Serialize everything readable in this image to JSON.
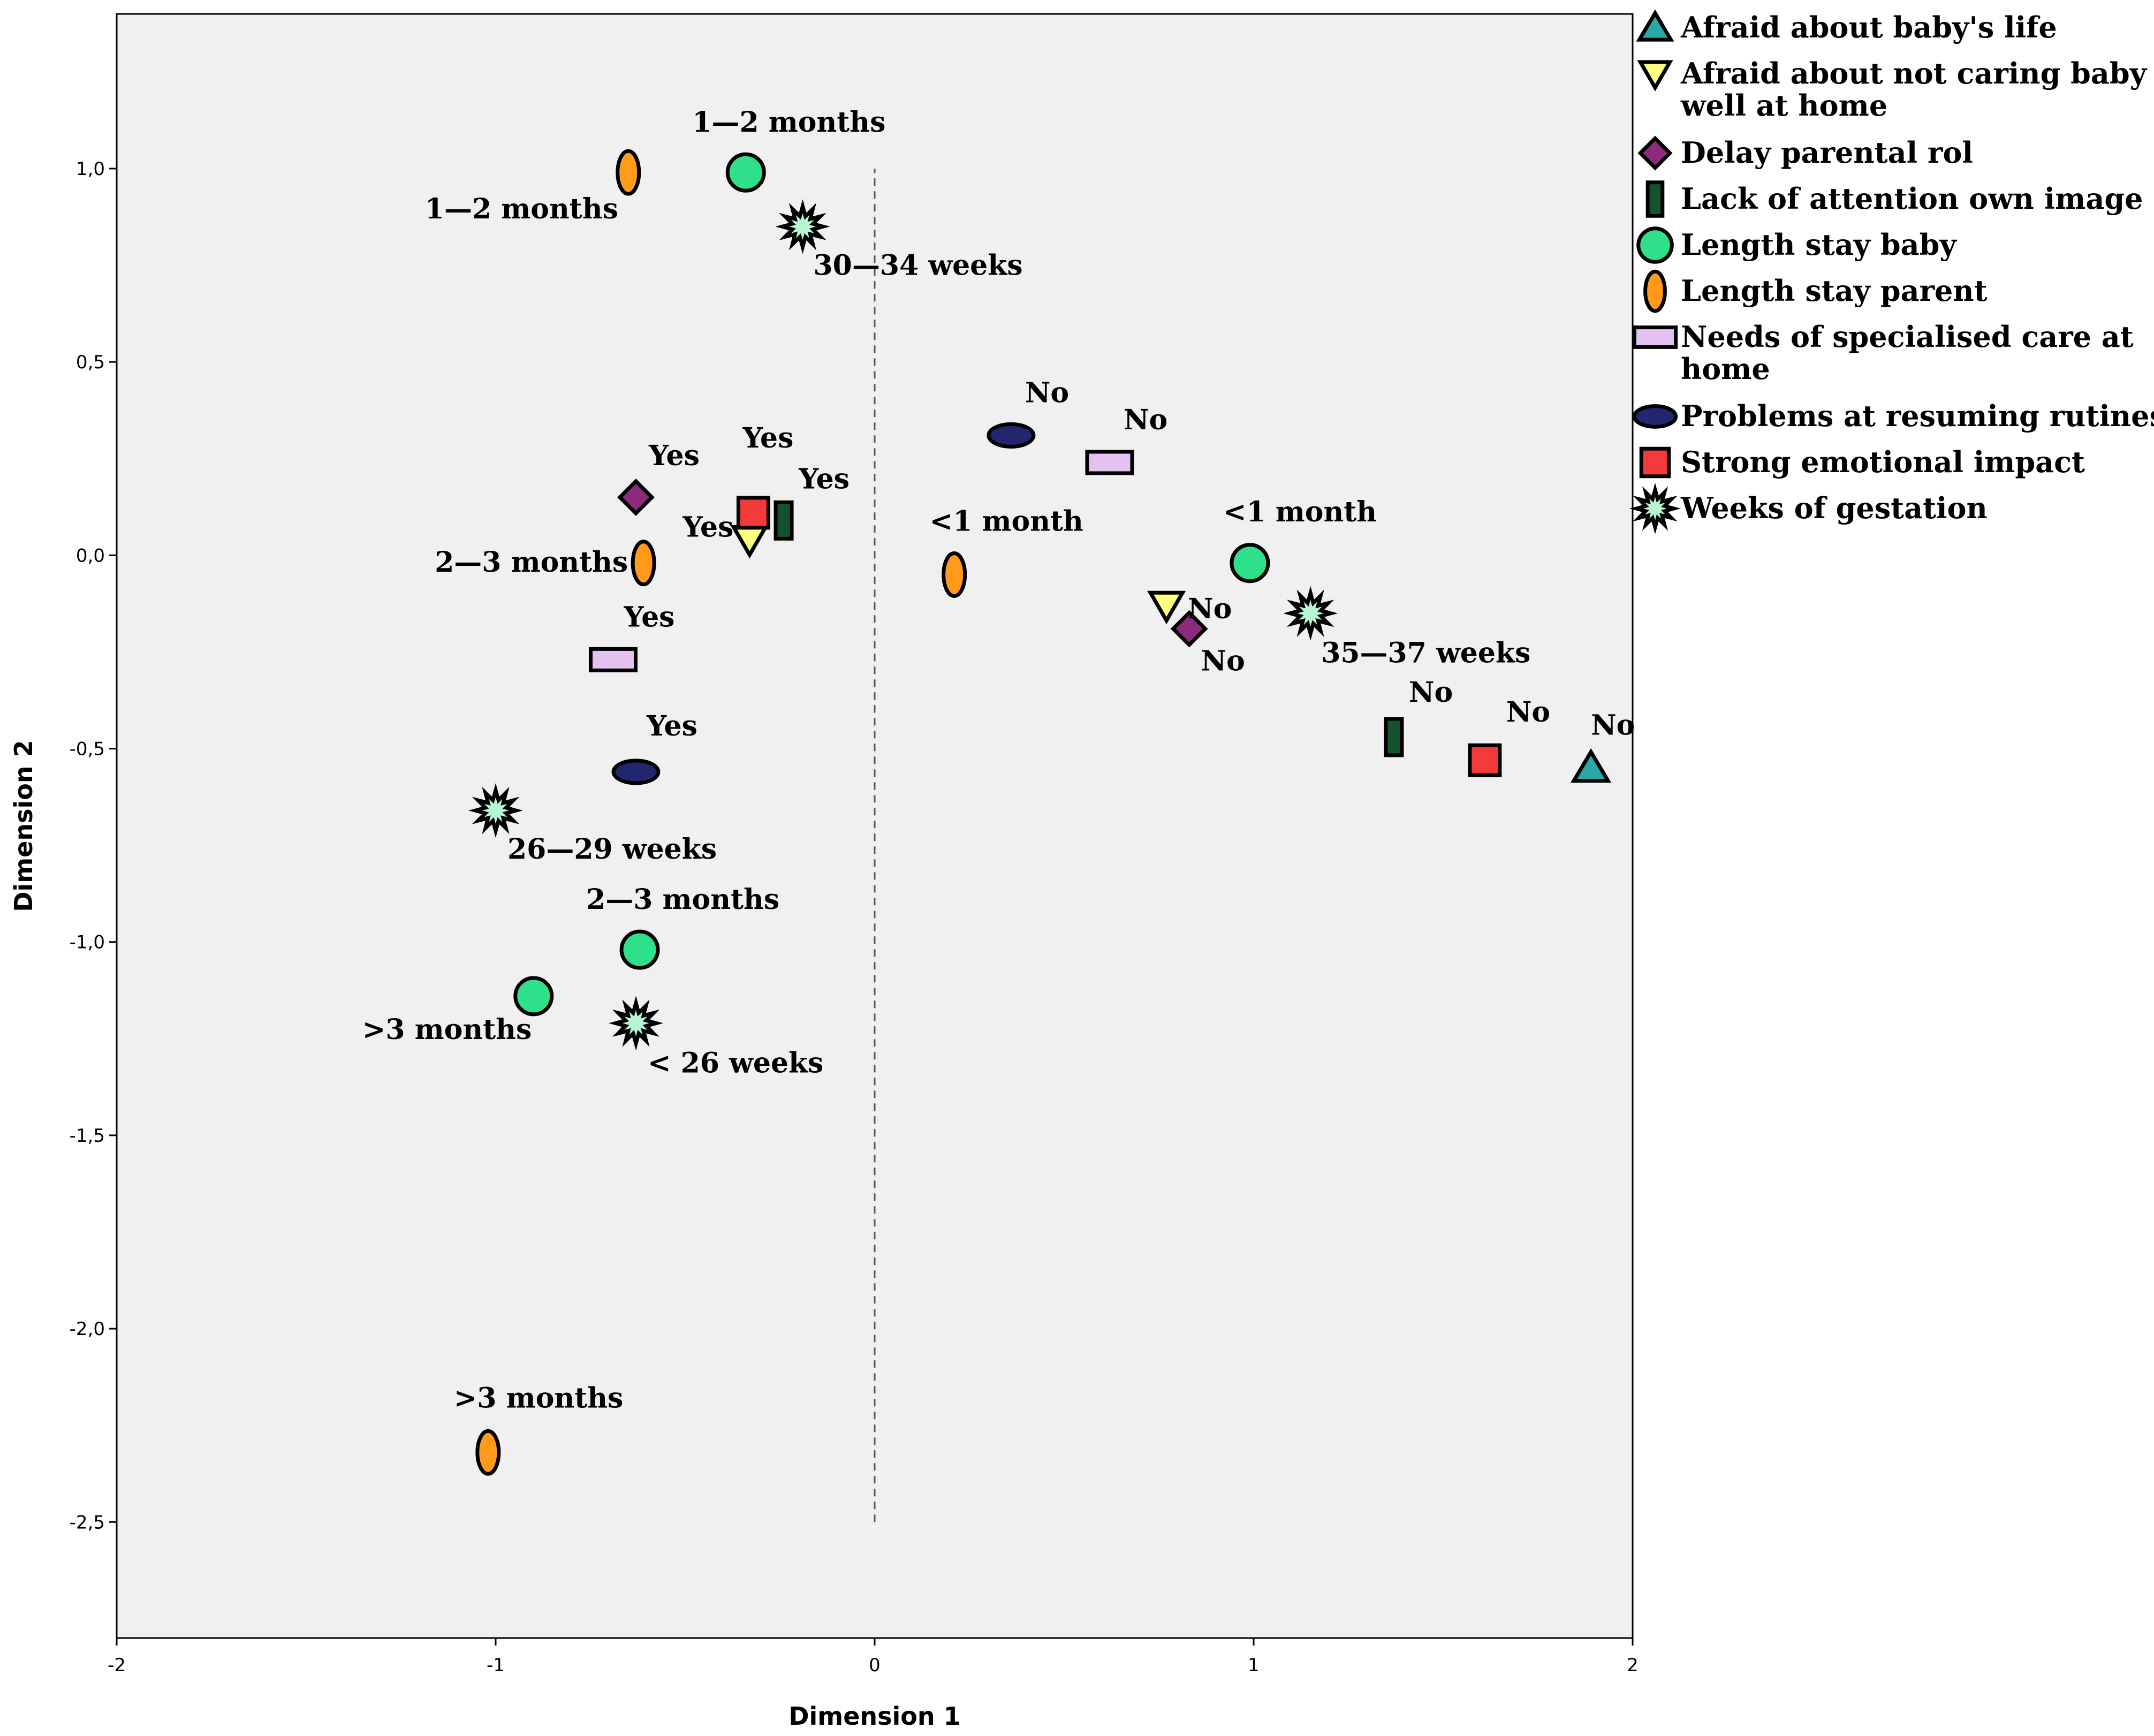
{
  "chart_data": {
    "type": "scatter",
    "title": "",
    "xlabel": "Dimension 1",
    "ylabel": "Dimension 2",
    "xlim": [
      -2,
      2
    ],
    "ylim": [
      -2.8,
      1.4
    ],
    "x_ticks": [
      -2,
      -1,
      0,
      1,
      2
    ],
    "x_tick_labels": [
      "-2",
      "-1",
      "0",
      "1",
      "2"
    ],
    "y_ticks": [
      1.0,
      0.5,
      0.0,
      -0.5,
      -1.0,
      -1.5,
      -2.0,
      -2.5
    ],
    "y_tick_labels": [
      "1,0",
      "0,5",
      "0,0",
      "-0,5",
      "-1,0",
      "-1,5",
      "-2,0",
      "-2,5"
    ],
    "reference_line": {
      "x": 0,
      "y_from": -2.5,
      "y_to": 1.0,
      "style": "dashed"
    },
    "legend_position": "right",
    "series": [
      {
        "name": "Afraid about baby's life",
        "marker": "triangle",
        "color": "#2aa7a7",
        "points": [
          {
            "x": 1.89,
            "y": -0.55,
            "label": "No"
          }
        ]
      },
      {
        "name": "Afraid about not caring baby well at home",
        "marker": "triangle-down",
        "color": "#ffff80",
        "points": [
          {
            "x": -0.33,
            "y": 0.04,
            "label": "Yes"
          },
          {
            "x": 0.77,
            "y": -0.13,
            "label": "No"
          }
        ]
      },
      {
        "name": "Delay parental rol",
        "marker": "diamond",
        "color": "#8e2a7d",
        "points": [
          {
            "x": -0.63,
            "y": 0.15,
            "label": "Yes"
          },
          {
            "x": 0.83,
            "y": -0.19,
            "label": "No"
          }
        ]
      },
      {
        "name": "Lack of attention own image",
        "marker": "bar",
        "color": "#14532d",
        "points": [
          {
            "x": -0.24,
            "y": 0.09,
            "label": "Yes"
          },
          {
            "x": 1.37,
            "y": -0.47,
            "label": "No"
          }
        ]
      },
      {
        "name": "Length stay baby",
        "marker": "circle",
        "color": "#2ee08a",
        "points": [
          {
            "x": -0.34,
            "y": 0.99,
            "label": "1—2 months"
          },
          {
            "x": -0.62,
            "y": -1.02,
            "label": "2—3 months"
          },
          {
            "x": -0.9,
            "y": -1.14,
            "label": ">3 months"
          },
          {
            "x": 0.99,
            "y": -0.02,
            "label": "<1 month"
          }
        ]
      },
      {
        "name": "Length stay parent",
        "marker": "ellipse-v",
        "color": "#ff9a1a",
        "points": [
          {
            "x": -0.65,
            "y": 0.99,
            "label": "1—2 months"
          },
          {
            "x": -0.61,
            "y": -0.02,
            "label": "2—3 months"
          },
          {
            "x": 0.21,
            "y": -0.05,
            "label": "<1 month"
          },
          {
            "x": -1.02,
            "y": -2.32,
            "label": ">3 months"
          }
        ]
      },
      {
        "name": "Needs of  specialised care at home",
        "marker": "rect",
        "color": "#e4c2f0",
        "points": [
          {
            "x": -0.69,
            "y": -0.27,
            "label": "Yes"
          },
          {
            "x": 0.62,
            "y": 0.24,
            "label": "No"
          }
        ]
      },
      {
        "name": "Problems at resuming rutines",
        "marker": "ellipse-h",
        "color": "#22266e",
        "points": [
          {
            "x": -0.63,
            "y": -0.56,
            "label": "Yes"
          },
          {
            "x": 0.36,
            "y": 0.31,
            "label": "No"
          }
        ]
      },
      {
        "name": "Strong emotional impact",
        "marker": "square",
        "color": "#f23a3a",
        "points": [
          {
            "x": -0.32,
            "y": 0.11,
            "label": "Yes"
          },
          {
            "x": 1.61,
            "y": -0.53,
            "label": "No"
          }
        ]
      },
      {
        "name": "Weeks of gestation",
        "marker": "star",
        "color": "#b8f5d2",
        "points": [
          {
            "x": -0.19,
            "y": 0.85,
            "label": "30—34 weeks"
          },
          {
            "x": -1.0,
            "y": -0.66,
            "label": "26—29 weeks"
          },
          {
            "x": -0.63,
            "y": -1.21,
            "label": "< 26 weeks"
          },
          {
            "x": 1.15,
            "y": -0.15,
            "label": "35—37 weeks"
          }
        ]
      }
    ]
  }
}
